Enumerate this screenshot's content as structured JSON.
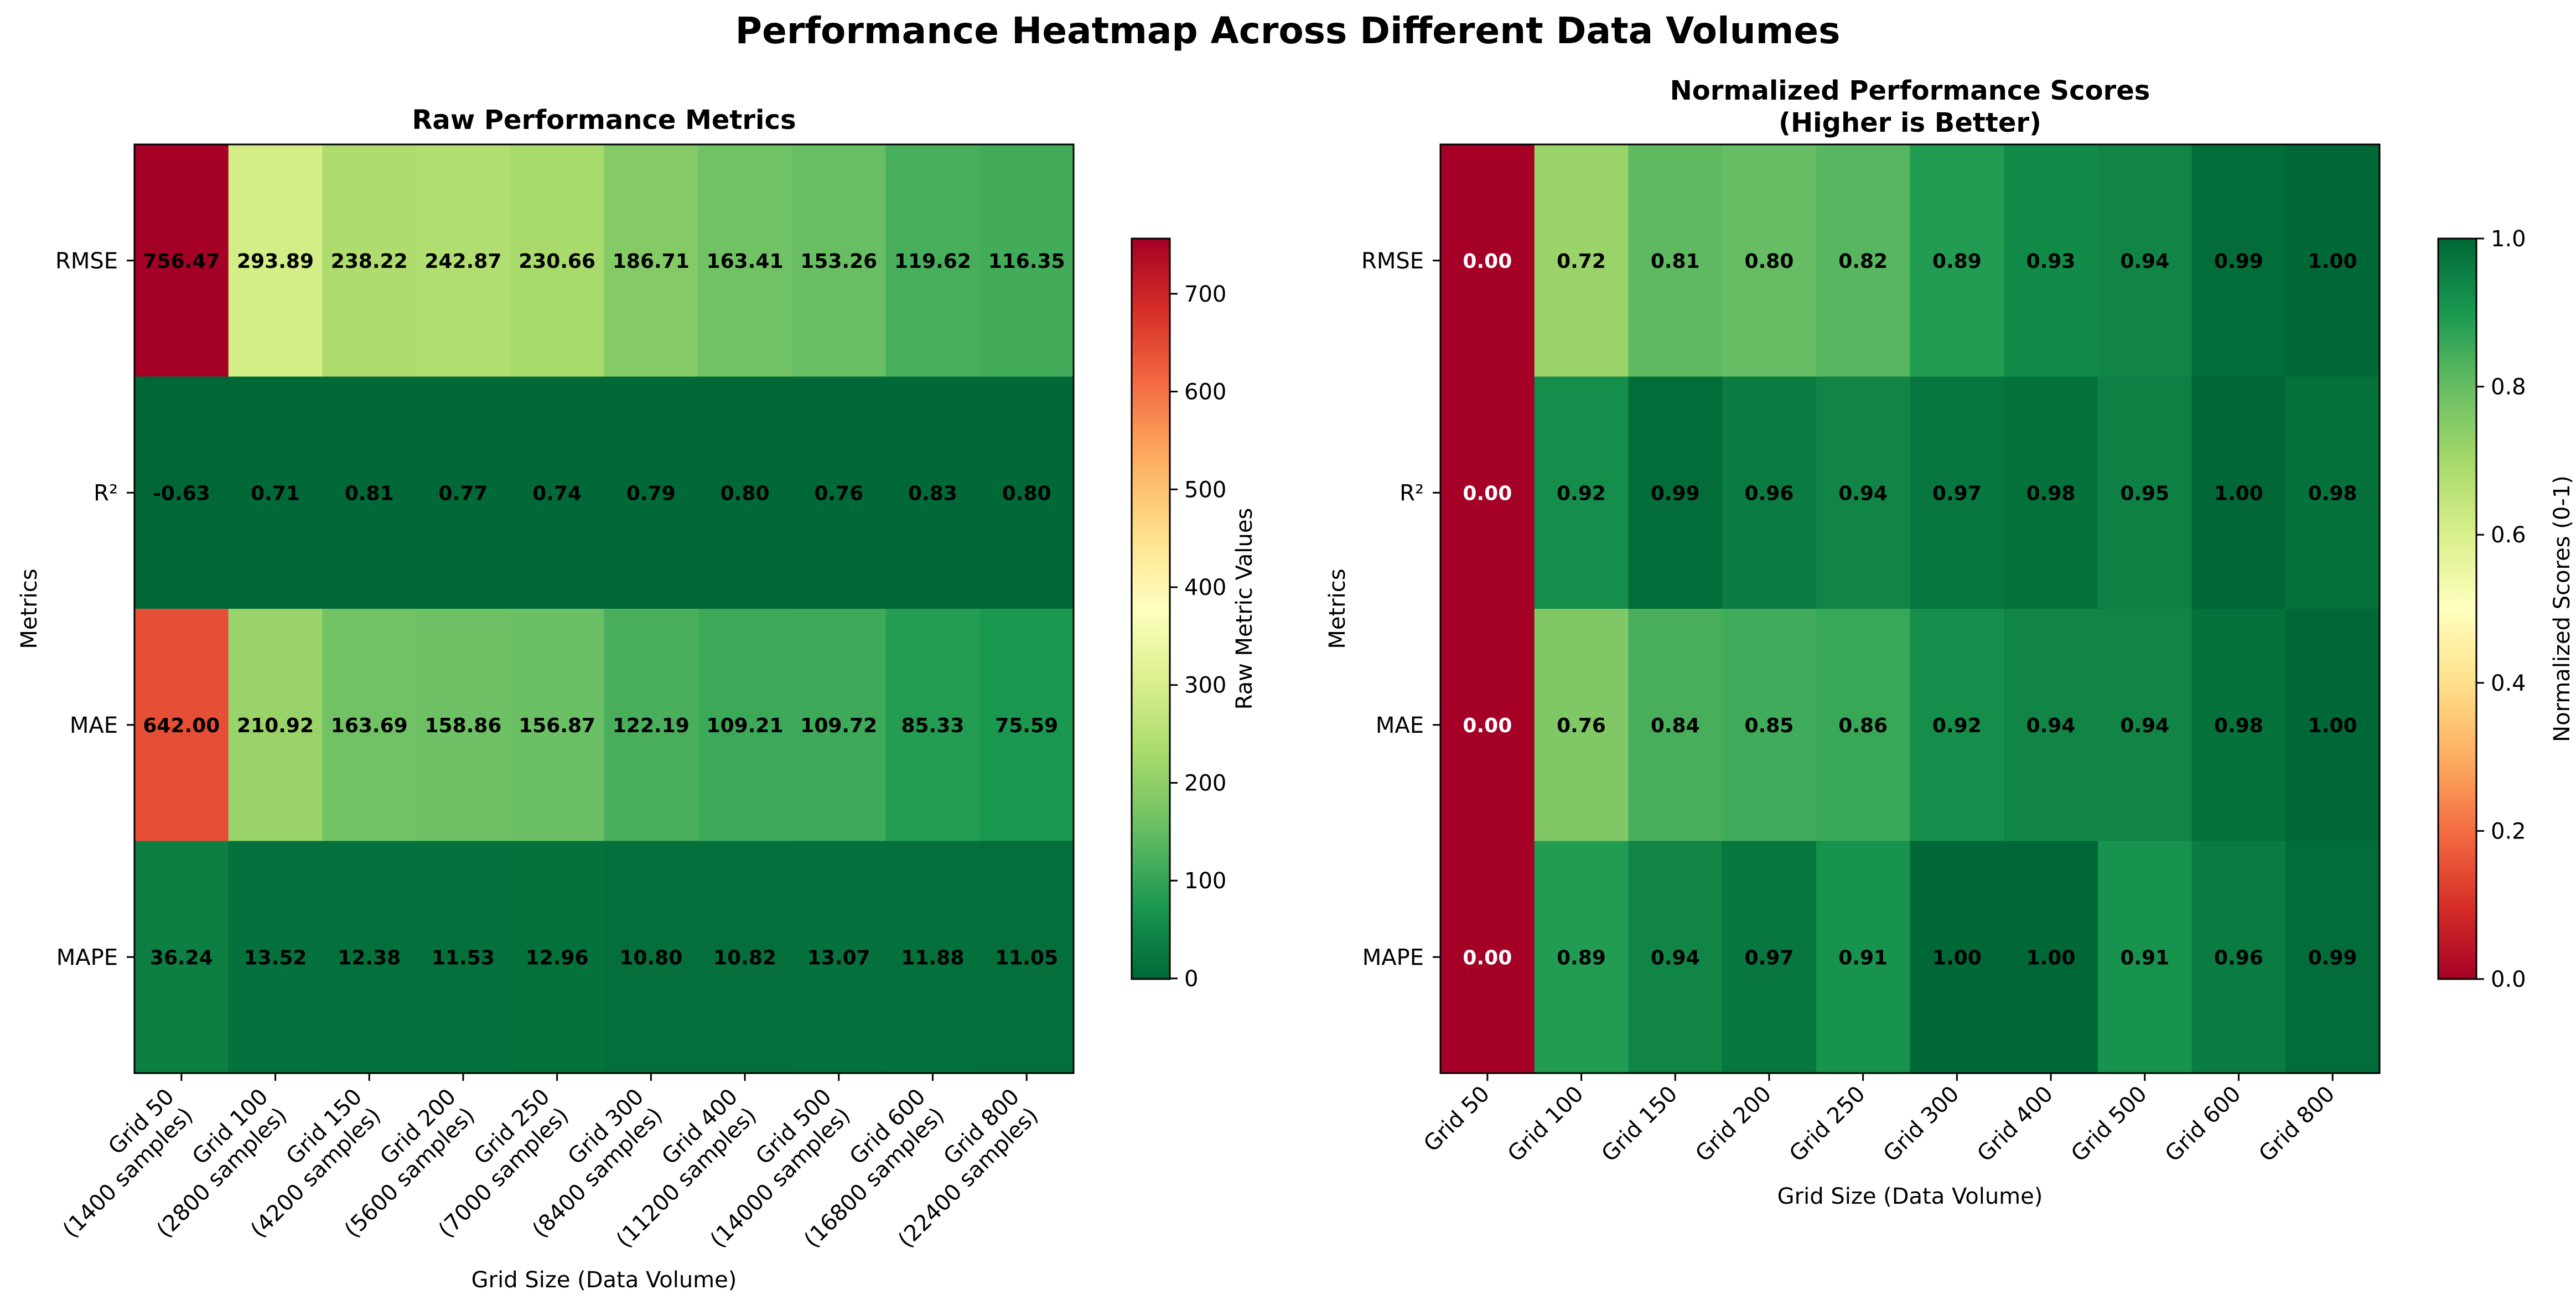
{
  "suptitle": "Performance Heatmap Across Different Data Volumes",
  "chart_data": [
    {
      "type": "heatmap",
      "title": "Raw Performance Metrics",
      "title_lines": [
        "Raw Performance Metrics"
      ],
      "xlabel": "Grid Size (Data Volume)",
      "ylabel": "Metrics",
      "x_tick_labels": [
        [
          "Grid 50",
          "(1400 samples)"
        ],
        [
          "Grid 100",
          "(2800 samples)"
        ],
        [
          "Grid 150",
          "(4200 samples)"
        ],
        [
          "Grid 200",
          "(5600 samples)"
        ],
        [
          "Grid 250",
          "(7000 samples)"
        ],
        [
          "Grid 300",
          "(8400 samples)"
        ],
        [
          "Grid 400",
          "(11200 samples)"
        ],
        [
          "Grid 500",
          "(14000 samples)"
        ],
        [
          "Grid 600",
          "(16800 samples)"
        ],
        [
          "Grid 800",
          "(22400 samples)"
        ]
      ],
      "rows": [
        "RMSE",
        "R²",
        "MAE",
        "MAPE"
      ],
      "values": [
        [
          756.47,
          293.89,
          238.22,
          242.87,
          230.66,
          186.71,
          163.41,
          153.26,
          119.62,
          116.35
        ],
        [
          -0.63,
          0.71,
          0.81,
          0.77,
          0.74,
          0.79,
          0.8,
          0.76,
          0.83,
          0.8
        ],
        [
          642.0,
          210.92,
          163.69,
          158.86,
          156.87,
          122.19,
          109.21,
          109.72,
          85.33,
          75.59
        ],
        [
          36.24,
          13.52,
          12.38,
          11.53,
          12.96,
          10.8,
          10.82,
          13.07,
          11.88,
          11.05
        ]
      ],
      "colormap": "RdYlGn_r",
      "vmin": -0.63,
      "vmax": 756.47,
      "colorbar": {
        "label": "Raw Metric Values",
        "ticks": [
          0,
          100,
          200,
          300,
          400,
          500,
          600,
          700
        ]
      }
    },
    {
      "type": "heatmap",
      "title": "Normalized Performance Scores (Higher is Better)",
      "title_lines": [
        "Normalized Performance Scores",
        "(Higher is Better)"
      ],
      "xlabel": "Grid Size (Data Volume)",
      "ylabel": "Metrics",
      "x_tick_labels": [
        [
          "Grid 50"
        ],
        [
          "Grid 100"
        ],
        [
          "Grid 150"
        ],
        [
          "Grid 200"
        ],
        [
          "Grid 250"
        ],
        [
          "Grid 300"
        ],
        [
          "Grid 400"
        ],
        [
          "Grid 500"
        ],
        [
          "Grid 600"
        ],
        [
          "Grid 800"
        ]
      ],
      "rows": [
        "RMSE",
        "R²",
        "MAE",
        "MAPE"
      ],
      "values": [
        [
          0.0,
          0.72,
          0.81,
          0.8,
          0.82,
          0.89,
          0.93,
          0.94,
          0.99,
          1.0
        ],
        [
          0.0,
          0.92,
          0.99,
          0.96,
          0.94,
          0.97,
          0.98,
          0.95,
          1.0,
          0.98
        ],
        [
          0.0,
          0.76,
          0.84,
          0.85,
          0.86,
          0.92,
          0.94,
          0.94,
          0.98,
          1.0
        ],
        [
          0.0,
          0.89,
          0.94,
          0.97,
          0.91,
          1.0,
          1.0,
          0.91,
          0.96,
          0.99
        ]
      ],
      "colormap": "RdYlGn",
      "vmin": 0,
      "vmax": 1,
      "colorbar": {
        "label": "Normalized Scores (0-1)",
        "ticks": [
          "0.0",
          "0.2",
          "0.4",
          "0.6",
          "0.8",
          "1.0"
        ]
      }
    }
  ]
}
